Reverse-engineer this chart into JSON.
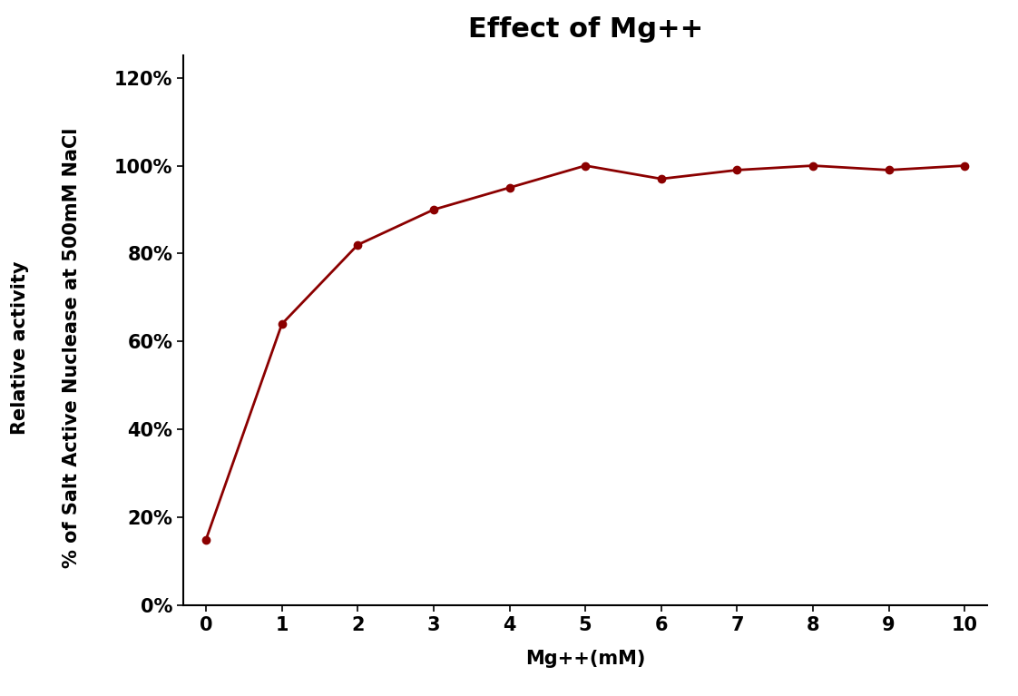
{
  "title": "Effect of Mg++",
  "xlabel": "Mg++(mM)",
  "ylabel_main": "Relative activity",
  "ylabel_sub": "% of Salt Active Nuclease at 500mM NaCl",
  "x": [
    0,
    1,
    2,
    3,
    4,
    5,
    6,
    7,
    8,
    9,
    10
  ],
  "y": [
    0.15,
    0.64,
    0.82,
    0.9,
    0.95,
    1.0,
    0.97,
    0.99,
    1.0,
    0.99,
    1.0
  ],
  "line_color": "#8B0000",
  "marker": "o",
  "marker_size": 6,
  "line_width": 2.0,
  "xlim": [
    -0.3,
    10.3
  ],
  "ylim": [
    0,
    1.25
  ],
  "yticks": [
    0.0,
    0.2,
    0.4,
    0.6,
    0.8,
    1.0,
    1.2
  ],
  "ytick_labels": [
    "0%",
    "20%",
    "40%",
    "60%",
    "80%",
    "100%",
    "120%"
  ],
  "xticks": [
    0,
    1,
    2,
    3,
    4,
    5,
    6,
    7,
    8,
    9,
    10
  ],
  "title_fontsize": 22,
  "axis_label_fontsize": 15,
  "tick_fontsize": 15,
  "background_color": "#ffffff"
}
